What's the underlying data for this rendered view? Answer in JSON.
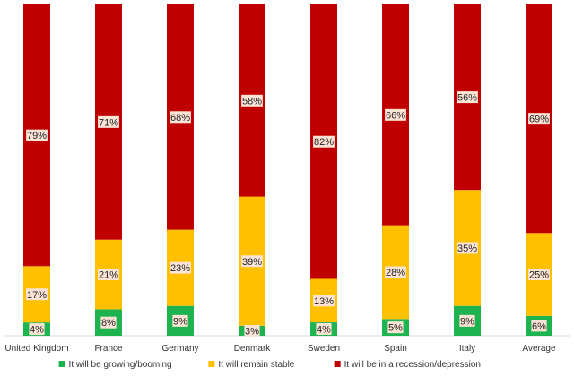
{
  "chart_data": {
    "type": "bar",
    "stacked": true,
    "normalized_percent": true,
    "categories": [
      "United Kingdom",
      "France",
      "Germany",
      "Denmark",
      "Sweden",
      "Spain",
      "Italy",
      "Average"
    ],
    "series": [
      {
        "name": "It will be growing/booming",
        "color": "#1db34f",
        "values": [
          4,
          8,
          9,
          3,
          4,
          5,
          9,
          6
        ]
      },
      {
        "name": "It will remain stable",
        "color": "#ffc000",
        "values": [
          17,
          21,
          23,
          39,
          13,
          28,
          35,
          25
        ]
      },
      {
        "name": "It will be in a recession/depression",
        "color": "#c00000",
        "values": [
          79,
          71,
          68,
          58,
          82,
          66,
          56,
          69
        ]
      }
    ],
    "value_suffix": "%",
    "legend_position": "bottom",
    "title": "",
    "xlabel": "",
    "ylabel": ""
  }
}
